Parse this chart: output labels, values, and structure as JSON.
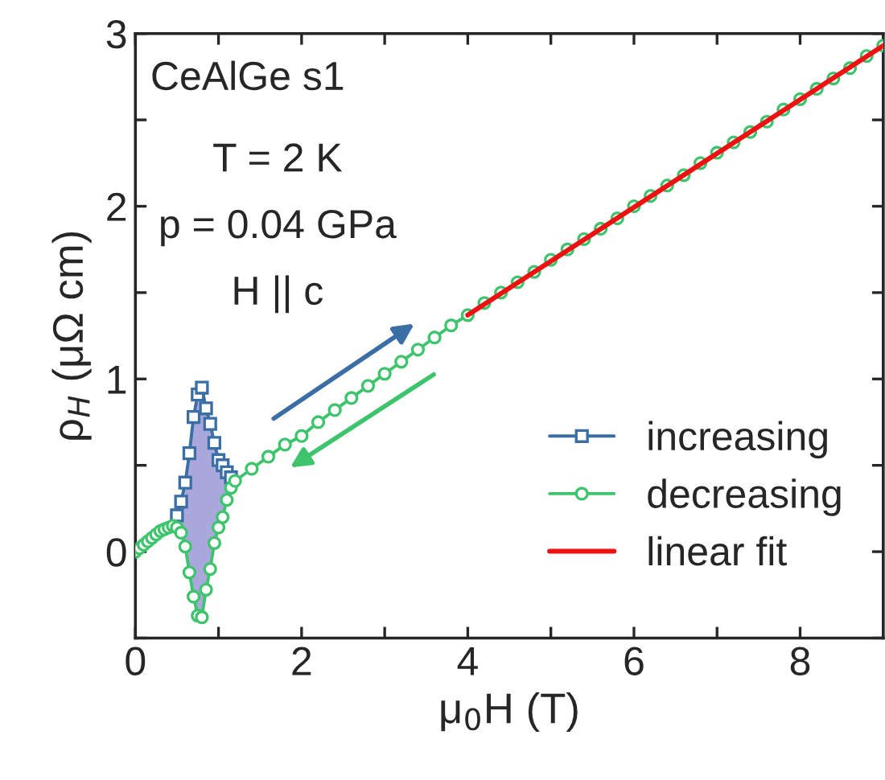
{
  "chart_data": {
    "type": "line",
    "xlabel": "μ$_{0}$H (T)",
    "ylabel": "ρ$_{H}$ (μΩ cm)",
    "xlim": [
      0,
      9
    ],
    "ylim": [
      -0.5,
      3
    ],
    "xticks": [
      0,
      {
        "value": 1,
        "label": null
      },
      2,
      {
        "value": 3,
        "label": null
      },
      4,
      {
        "value": 5,
        "label": null
      },
      6,
      {
        "value": 7,
        "label": null
      },
      8
    ],
    "yticks": [
      {
        "value": -0.5,
        "label": null
      },
      0,
      {
        "value": 0.5,
        "label": null
      },
      1,
      {
        "value": 1.5,
        "label": null
      },
      2,
      {
        "value": 2.5,
        "label": null
      },
      3
    ],
    "annotations": [
      "CeAlGe s1",
      "T = 2 K",
      "p = 0.04 GPa",
      "H || c"
    ],
    "legend": "bottom right",
    "grid": false,
    "line_style": "solid",
    "series": [
      {
        "name": "increasing",
        "color": "#3a6ea5",
        "marker": "square",
        "x": [
          0.45,
          0.5,
          0.55,
          0.6,
          0.65,
          0.7,
          0.75,
          0.8,
          0.85,
          0.9,
          0.95,
          1.0,
          1.05,
          1.1,
          1.15,
          1.2
        ],
        "values": [
          null,
          0.21,
          0.29,
          0.4,
          0.57,
          0.78,
          0.91,
          0.95,
          0.83,
          0.74,
          0.63,
          0.53,
          0.5,
          0.46,
          0.43,
          null
        ],
        "upper": [
          0.18,
          0.21,
          0.29,
          0.4,
          0.57,
          0.78,
          0.91,
          0.95,
          0.83,
          0.74,
          0.63,
          0.53,
          0.5,
          0.46,
          0.43,
          0.41
        ],
        "lower": [
          0.15,
          0.14,
          0.11,
          0.03,
          -0.12,
          -0.26,
          -0.37,
          -0.38,
          -0.22,
          -0.1,
          0.05,
          0.14,
          0.2,
          0.3,
          0.37,
          0.41
        ]
      },
      {
        "name": "decreasing",
        "color": "#3ec46d",
        "marker": "circle",
        "x": [
          0,
          0.05,
          0.1,
          0.15,
          0.2,
          0.25,
          0.3,
          0.35,
          0.4,
          0.45,
          0.5,
          0.55,
          0.6,
          0.65,
          0.7,
          0.75,
          0.8,
          0.85,
          0.9,
          0.95,
          1.0,
          1.05,
          1.1,
          1.15,
          1.2,
          1.4,
          1.6,
          1.8,
          2.0,
          2.2,
          2.4,
          2.6,
          2.8,
          3.0,
          3.2,
          3.4,
          3.6,
          3.8,
          4.0,
          4.2,
          4.4,
          4.6,
          4.8,
          5.0,
          5.2,
          5.4,
          5.6,
          5.8,
          6.0,
          6.2,
          6.4,
          6.6,
          6.8,
          7.0,
          7.2,
          7.4,
          7.6,
          7.8,
          8.0,
          8.2,
          8.4,
          8.6,
          8.8,
          9.0
        ],
        "values": [
          0,
          0.02,
          0.04,
          0.06,
          0.08,
          0.1,
          0.12,
          0.13,
          0.14,
          0.15,
          0.14,
          0.11,
          0.03,
          -0.12,
          -0.26,
          -0.37,
          -0.38,
          -0.22,
          -0.1,
          0.05,
          0.14,
          0.2,
          0.3,
          0.37,
          0.41,
          0.48,
          0.55,
          0.62,
          0.67,
          0.75,
          0.82,
          0.89,
          0.96,
          1.03,
          1.1,
          1.17,
          1.24,
          1.31,
          1.37,
          1.44,
          1.5,
          1.56,
          1.62,
          1.69,
          1.75,
          1.81,
          1.87,
          1.93,
          2.0,
          2.06,
          2.12,
          2.18,
          2.25,
          2.31,
          2.37,
          2.43,
          2.49,
          2.56,
          2.62,
          2.68,
          2.74,
          2.8,
          2.87,
          2.93
        ]
      },
      {
        "name": "linear fit",
        "color": "#ee1111",
        "marker": "none",
        "x": [
          4,
          9
        ],
        "values": [
          1.37,
          2.93
        ]
      }
    ]
  }
}
